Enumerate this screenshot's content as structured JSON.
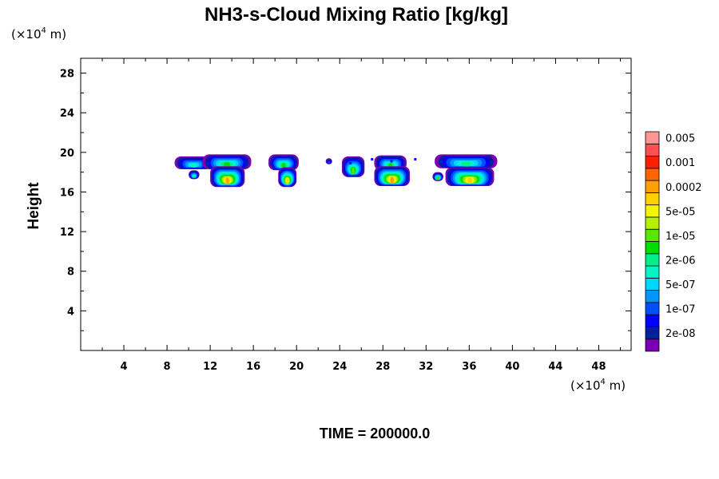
{
  "chart_data": {
    "type": "heatmap",
    "title": "NH3-s-Cloud Mixing Ratio [kg/kg]",
    "ylabel": "Height",
    "xlabel": "",
    "x_unit": {
      "prefix": "(×10",
      "exp": "4",
      "suffix": " m)"
    },
    "y_unit": {
      "prefix": "(×10",
      "exp": "4",
      "suffix": " m)"
    },
    "xlim": [
      0,
      51
    ],
    "ylim": [
      0,
      29.5
    ],
    "x_ticks": [
      4,
      8,
      12,
      16,
      20,
      24,
      28,
      32,
      36,
      40,
      44,
      48
    ],
    "x_tick_labels": [
      "4",
      "8",
      "12",
      "16",
      "20",
      "24",
      "28",
      "32",
      "36",
      "40",
      "44",
      "48"
    ],
    "y_ticks": [
      4,
      8,
      12,
      16,
      20,
      24,
      28
    ],
    "y_tick_labels": [
      "4",
      "8",
      "12",
      "16",
      "20",
      "24",
      "28"
    ],
    "x_minor_step": 2,
    "y_minor_step": 2,
    "colorbar": {
      "levels": [
        "2e-08",
        "1e-07",
        "5e-07",
        "2e-06",
        "1e-05",
        "5e-05",
        "0.0002",
        "0.001",
        "0.005"
      ],
      "colors": [
        "#7b00b4",
        "#001ea0",
        "#0000ff",
        "#0050ff",
        "#0096ff",
        "#00d7ff",
        "#00f5c8",
        "#00f08c",
        "#00dc00",
        "#5ae600",
        "#b4f000",
        "#f5f500",
        "#ffd200",
        "#ffa000",
        "#ff6400",
        "#ff1e00",
        "#ff5050",
        "#ff9696"
      ]
    },
    "clouds": [
      {
        "x0": 8.7,
        "x1": 12.2,
        "top": 19.6,
        "bottom": 18.3,
        "max": 0.35
      },
      {
        "x0": 10.0,
        "x1": 11.0,
        "top": 18.2,
        "bottom": 17.3,
        "max": 0.4
      },
      {
        "x0": 11.3,
        "x1": 15.8,
        "top": 19.8,
        "bottom": 18.3,
        "max": 0.45
      },
      {
        "x0": 12.0,
        "x1": 15.2,
        "top": 18.6,
        "bottom": 16.5,
        "max": 0.75
      },
      {
        "x0": 17.4,
        "x1": 20.2,
        "top": 19.8,
        "bottom": 18.2,
        "max": 0.45
      },
      {
        "x0": 18.3,
        "x1": 20.0,
        "top": 18.5,
        "bottom": 16.5,
        "max": 0.7
      },
      {
        "x0": 22.7,
        "x1": 23.3,
        "top": 19.4,
        "bottom": 18.8,
        "max": 0.2
      },
      {
        "x0": 24.2,
        "x1": 26.3,
        "top": 19.6,
        "bottom": 17.5,
        "max": 0.5
      },
      {
        "x0": 27.2,
        "x1": 30.2,
        "top": 19.7,
        "bottom": 18.2,
        "max": 0.45
      },
      {
        "x0": 27.2,
        "x1": 30.5,
        "top": 18.6,
        "bottom": 16.6,
        "max": 0.75
      },
      {
        "x0": 32.8,
        "x1": 38.6,
        "top": 19.8,
        "bottom": 18.4,
        "max": 0.4
      },
      {
        "x0": 33.8,
        "x1": 38.3,
        "top": 18.5,
        "bottom": 16.6,
        "max": 0.7
      },
      {
        "x0": 32.6,
        "x1": 33.6,
        "top": 18.0,
        "bottom": 17.1,
        "max": 0.5
      }
    ],
    "specks": [
      {
        "x": 25.0,
        "y": 18.9
      },
      {
        "x": 27.0,
        "y": 19.3
      },
      {
        "x": 28.8,
        "y": 19.1
      },
      {
        "x": 31.0,
        "y": 19.3
      }
    ]
  },
  "time_label": "TIME = 200000.0"
}
